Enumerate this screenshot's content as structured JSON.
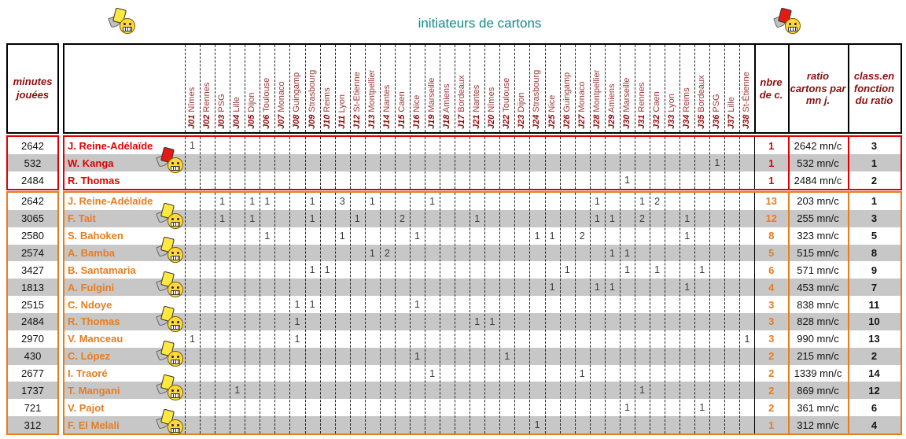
{
  "page": {
    "title": "initiateurs de cartons"
  },
  "colors": {
    "title": "#0f8a8a",
    "red_section": "#e00000",
    "orange_section": "#e87d1e",
    "header_text": "#8b0f0f",
    "alt_row": "#c7c7c7"
  },
  "icons": {
    "top_left": "yellow-card-smiley",
    "top_right": "red-card-smiley"
  },
  "header": {
    "minutes_label": "minutes jouées",
    "nbre_label": "nbre de c.",
    "ratio_label": "ratio cartons par mn j.",
    "class_label": "class.en fonction du ratio",
    "matchdays": [
      {
        "code": "J01",
        "opponent": "Nîmes"
      },
      {
        "code": "J02",
        "opponent": "Rennes"
      },
      {
        "code": "J03",
        "opponent": "PSG"
      },
      {
        "code": "J04",
        "opponent": "Lille"
      },
      {
        "code": "J05",
        "opponent": "Dijon"
      },
      {
        "code": "J06",
        "opponent": "Toulouse"
      },
      {
        "code": "J07",
        "opponent": "Monaco"
      },
      {
        "code": "J08",
        "opponent": "Guingamp"
      },
      {
        "code": "J09",
        "opponent": "Strasbourg"
      },
      {
        "code": "J10",
        "opponent": "Reims"
      },
      {
        "code": "J11",
        "opponent": "Lyon"
      },
      {
        "code": "J12",
        "opponent": "St-Etienne"
      },
      {
        "code": "J13",
        "opponent": "Montpellier"
      },
      {
        "code": "J14",
        "opponent": "Nantes"
      },
      {
        "code": "J15",
        "opponent": "Caen"
      },
      {
        "code": "J16",
        "opponent": "Nice"
      },
      {
        "code": "J19",
        "opponent": "Marseille"
      },
      {
        "code": "J18",
        "opponent": "Amiens"
      },
      {
        "code": "J17",
        "opponent": "Bordeaux"
      },
      {
        "code": "J21",
        "opponent": "Nantes"
      },
      {
        "code": "J20",
        "opponent": "Nîmes"
      },
      {
        "code": "J22",
        "opponent": "Toulouse"
      },
      {
        "code": "J23",
        "opponent": "Dijon"
      },
      {
        "code": "J24",
        "opponent": "Strasbourg"
      },
      {
        "code": "J25",
        "opponent": "Nice"
      },
      {
        "code": "J26",
        "opponent": "Guingamp"
      },
      {
        "code": "J27",
        "opponent": "Monaco"
      },
      {
        "code": "J28",
        "opponent": "Montpellier"
      },
      {
        "code": "J29",
        "opponent": "Amiens"
      },
      {
        "code": "J30",
        "opponent": "Marseille"
      },
      {
        "code": "J31",
        "opponent": "Rennes"
      },
      {
        "code": "J32",
        "opponent": "Caen"
      },
      {
        "code": "J33",
        "opponent": "Lyon"
      },
      {
        "code": "J34",
        "opponent": "Reims"
      },
      {
        "code": "J35",
        "opponent": "Bordeaux"
      },
      {
        "code": "J36",
        "opponent": "PSG"
      },
      {
        "code": "J37",
        "opponent": "Lille"
      },
      {
        "code": "J38",
        "opponent": "St-Étienne"
      }
    ]
  },
  "sections": [
    {
      "id": "red",
      "rows": [
        {
          "minutes": "2642",
          "name": "J. Reine-Adélaïde",
          "icon": null,
          "cards": [
            [
              0,
              "1"
            ]
          ],
          "nbre": "1",
          "ratio": "2642 mn/c",
          "rank": "3"
        },
        {
          "minutes": "532",
          "name": "W. Kanga",
          "icon": "red-card-smiley",
          "cards": [
            [
              35,
              "1"
            ]
          ],
          "nbre": "1",
          "ratio": "532 mn/c",
          "rank": "1"
        },
        {
          "minutes": "2484",
          "name": "R. Thomas",
          "icon": null,
          "cards": [
            [
              29,
              "1"
            ]
          ],
          "nbre": "1",
          "ratio": "2484 mn/c",
          "rank": "2"
        }
      ]
    },
    {
      "id": "orange",
      "rows": [
        {
          "minutes": "2642",
          "name": "J. Reine-Adélaïde",
          "icon": null,
          "cards": [
            [
              2,
              "1"
            ],
            [
              4,
              "1"
            ],
            [
              5,
              "1"
            ],
            [
              8,
              "1"
            ],
            [
              10,
              "3"
            ],
            [
              12,
              "1"
            ],
            [
              16,
              "1"
            ],
            [
              27,
              "1"
            ],
            [
              30,
              "1"
            ],
            [
              31,
              "2"
            ]
          ],
          "nbre": "13",
          "ratio": "203 mn/c",
          "rank": "1"
        },
        {
          "minutes": "3065",
          "name": "F. Tait",
          "icon": "yellow-card-smiley",
          "cards": [
            [
              2,
              "1"
            ],
            [
              4,
              "1"
            ],
            [
              8,
              "1"
            ],
            [
              11,
              "1"
            ],
            [
              14,
              "2"
            ],
            [
              19,
              "1"
            ],
            [
              27,
              "1"
            ],
            [
              28,
              "1"
            ],
            [
              30,
              "2"
            ],
            [
              33,
              "1"
            ]
          ],
          "nbre": "12",
          "ratio": "255 mn/c",
          "rank": "3"
        },
        {
          "minutes": "2580",
          "name": "S. Bahoken",
          "icon": null,
          "cards": [
            [
              5,
              "1"
            ],
            [
              10,
              "1"
            ],
            [
              15,
              "1"
            ],
            [
              23,
              "1"
            ],
            [
              24,
              "1"
            ],
            [
              26,
              "2"
            ],
            [
              33,
              "1"
            ]
          ],
          "nbre": "8",
          "ratio": "323 mn/c",
          "rank": "5"
        },
        {
          "minutes": "2574",
          "name": "A. Bamba",
          "icon": "yellow-card-smiley",
          "cards": [
            [
              12,
              "1"
            ],
            [
              13,
              "2"
            ],
            [
              28,
              "1"
            ],
            [
              29,
              "1"
            ]
          ],
          "nbre": "5",
          "ratio": "515 mn/c",
          "rank": "8"
        },
        {
          "minutes": "3427",
          "name": "B. Santamaria",
          "icon": null,
          "cards": [
            [
              8,
              "1"
            ],
            [
              9,
              "1"
            ],
            [
              25,
              "1"
            ],
            [
              29,
              "1"
            ],
            [
              31,
              "1"
            ],
            [
              34,
              "1"
            ]
          ],
          "nbre": "6",
          "ratio": "571 mn/c",
          "rank": "9"
        },
        {
          "minutes": "1813",
          "name": "A. Fulgini",
          "icon": "yellow-card-smiley",
          "cards": [
            [
              24,
              "1"
            ],
            [
              27,
              "1"
            ],
            [
              28,
              "1"
            ],
            [
              33,
              "1"
            ]
          ],
          "nbre": "4",
          "ratio": "453 mn/c",
          "rank": "7"
        },
        {
          "minutes": "2515",
          "name": "C. Ndoye",
          "icon": null,
          "cards": [
            [
              7,
              "1"
            ],
            [
              8,
              "1"
            ],
            [
              15,
              "1"
            ]
          ],
          "nbre": "3",
          "ratio": "838 mn/c",
          "rank": "11"
        },
        {
          "minutes": "2484",
          "name": "R. Thomas",
          "icon": "yellow-card-smiley",
          "cards": [
            [
              7,
              "1"
            ],
            [
              19,
              "1"
            ],
            [
              20,
              "1"
            ]
          ],
          "nbre": "3",
          "ratio": "828 mn/c",
          "rank": "10"
        },
        {
          "minutes": "2970",
          "name": "V. Manceau",
          "icon": null,
          "cards": [
            [
              0,
              "1"
            ],
            [
              7,
              "1"
            ],
            [
              37,
              "1"
            ]
          ],
          "nbre": "3",
          "ratio": "990 mn/c",
          "rank": "13"
        },
        {
          "minutes": "430",
          "name": "C. López",
          "icon": "yellow-card-smiley",
          "cards": [
            [
              15,
              "1"
            ],
            [
              21,
              "1"
            ]
          ],
          "nbre": "2",
          "ratio": "215 mn/c",
          "rank": "2"
        },
        {
          "minutes": "2677",
          "name": "I. Traoré",
          "icon": null,
          "cards": [
            [
              16,
              "1"
            ],
            [
              26,
              "1"
            ]
          ],
          "nbre": "2",
          "ratio": "1339 mn/c",
          "rank": "14"
        },
        {
          "minutes": "1737",
          "name": "T. Mangani",
          "icon": "yellow-card-smiley",
          "cards": [
            [
              3,
              "1"
            ],
            [
              30,
              "1"
            ]
          ],
          "nbre": "2",
          "ratio": "869 mn/c",
          "rank": "12"
        },
        {
          "minutes": "721",
          "name": "V. Pajot",
          "icon": null,
          "cards": [
            [
              29,
              "1"
            ],
            [
              34,
              "1"
            ]
          ],
          "nbre": "2",
          "ratio": "361 mn/c",
          "rank": "6"
        },
        {
          "minutes": "312",
          "name": "F. El Melali",
          "icon": "yellow-card-smiley",
          "cards": [
            [
              23,
              "1"
            ]
          ],
          "nbre": "1",
          "ratio": "312 mn/c",
          "rank": "4"
        }
      ]
    }
  ]
}
